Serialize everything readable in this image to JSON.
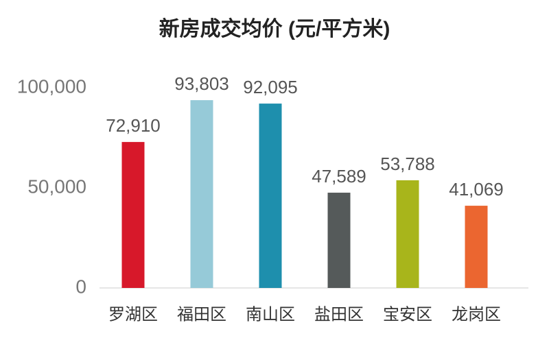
{
  "chart_data": {
    "type": "bar",
    "title": "新房成交均价 (元/平方米)",
    "categories": [
      "罗湖区",
      "福田区",
      "南山区",
      "盐田区",
      "宝安区",
      "龙岗区"
    ],
    "values": [
      72910,
      93803,
      92095,
      47589,
      53788,
      41069
    ],
    "value_labels": [
      "72,910",
      "93,803",
      "92,095",
      "47,589",
      "53,788",
      "41,069"
    ],
    "colors": [
      "#d7182a",
      "#96cad8",
      "#1e8fad",
      "#555a5a",
      "#a8b51b",
      "#eb6630"
    ],
    "ylim": [
      0,
      100000
    ],
    "yticks": [
      0,
      {
        "value": 50000,
        "label": "50,000"
      },
      {
        "value": 100000,
        "label": "100,000"
      }
    ],
    "grid": false
  }
}
